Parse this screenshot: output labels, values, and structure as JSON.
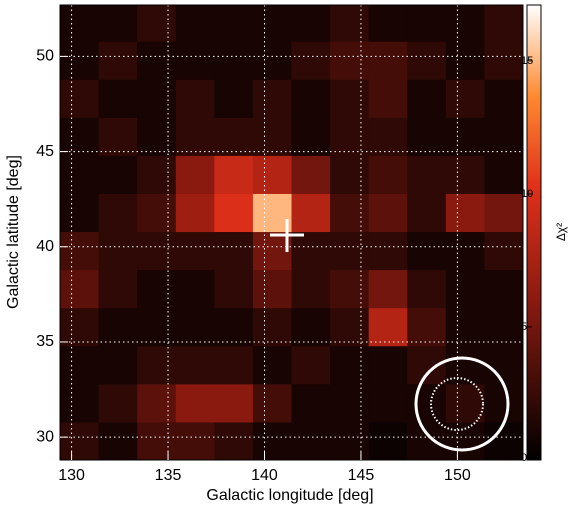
{
  "chart_data": {
    "type": "heatmap",
    "xlabel": "Galactic longitude [deg]",
    "ylabel": "Galactic latitude [deg]",
    "colorbar_label": "Δχ²",
    "x": [
      130.4,
      132.4,
      134.4,
      136.4,
      138.4,
      140.4,
      142.4,
      144.4,
      146.4,
      148.4,
      150.4,
      152.4
    ],
    "y": [
      29.8,
      31.8,
      33.8,
      35.8,
      37.8,
      39.8,
      41.8,
      43.8,
      45.8,
      47.8,
      49.8,
      51.8
    ],
    "values": [
      [
        2,
        1,
        3,
        3,
        2,
        1,
        1,
        1,
        0.5,
        1,
        1,
        0.5
      ],
      [
        1,
        2,
        4,
        6,
        6,
        3,
        1,
        1,
        1,
        1,
        2,
        1
      ],
      [
        1,
        1,
        2,
        2,
        2,
        1,
        2,
        1,
        1,
        2,
        1,
        1
      ],
      [
        2,
        1,
        1,
        1,
        1,
        2,
        1,
        2,
        8,
        3,
        1,
        1
      ],
      [
        4,
        2,
        1,
        1,
        2,
        4,
        2,
        3,
        5,
        2,
        1,
        1
      ],
      [
        3,
        2,
        2,
        2,
        2,
        5,
        2,
        2,
        2,
        1,
        1,
        2
      ],
      [
        1,
        2,
        3,
        7,
        10,
        15,
        8,
        3,
        4,
        2,
        6,
        5
      ],
      [
        1,
        1,
        2,
        6,
        9,
        8,
        5,
        2,
        3,
        2,
        2,
        1
      ],
      [
        1,
        2,
        1,
        2,
        2,
        2,
        1,
        2,
        2,
        1,
        1,
        1
      ],
      [
        2,
        1,
        1,
        2,
        1,
        2,
        1,
        2,
        3,
        1,
        2,
        1
      ],
      [
        1,
        2,
        1,
        1,
        1,
        1,
        2,
        3,
        3,
        2,
        1,
        2
      ],
      [
        1,
        1,
        2,
        1,
        1,
        1,
        1,
        2,
        1,
        1,
        1,
        2
      ]
    ],
    "xlim": [
      129.4,
      153.4
    ],
    "xticks": [
      130,
      135,
      140,
      145,
      150
    ],
    "ylim": [
      28.8,
      52.7
    ],
    "yticks": [
      30,
      35,
      40,
      45,
      50
    ],
    "clim": [
      0,
      17.1
    ],
    "cticks": [
      0,
      5,
      10,
      15
    ],
    "grid": true
  }
}
